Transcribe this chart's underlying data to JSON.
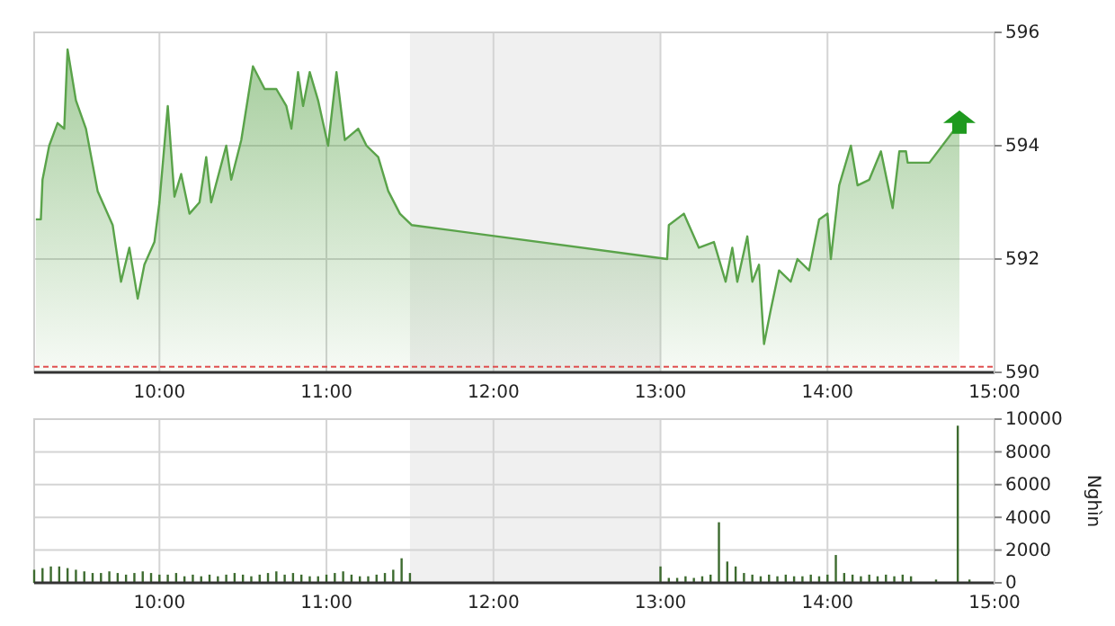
{
  "chart_data": [
    {
      "type": "area",
      "x": [
        9.26,
        9.29,
        9.3,
        9.34,
        9.39,
        9.43,
        9.45,
        9.5,
        9.56,
        9.63,
        9.72,
        9.77,
        9.82,
        9.87,
        9.91,
        9.97,
        10.0,
        10.05,
        10.09,
        10.13,
        10.18,
        10.24,
        10.28,
        10.31,
        10.4,
        10.43,
        10.49,
        10.56,
        10.63,
        10.7,
        10.76,
        10.79,
        10.83,
        10.86,
        10.9,
        10.95,
        11.01,
        11.06,
        11.11,
        11.19,
        11.24,
        11.31,
        11.37,
        11.44,
        11.51,
        13.04,
        13.05,
        13.14,
        13.23,
        13.32,
        13.39,
        13.43,
        13.46,
        13.52,
        13.55,
        13.59,
        13.62,
        13.66,
        13.71,
        13.78,
        13.82,
        13.89,
        13.95,
        14.0,
        14.02,
        14.07,
        14.14,
        14.18,
        14.25,
        14.32,
        14.39,
        14.43,
        14.47,
        14.48,
        14.61,
        14.79
      ],
      "values": [
        592.7,
        592.7,
        593.4,
        594.0,
        594.4,
        594.3,
        595.7,
        594.8,
        594.3,
        593.2,
        592.6,
        591.6,
        592.2,
        591.3,
        591.9,
        592.3,
        593.0,
        594.7,
        593.1,
        593.5,
        592.8,
        593.0,
        593.8,
        593.0,
        594.0,
        593.4,
        594.1,
        595.4,
        595.0,
        595.0,
        594.7,
        594.3,
        595.3,
        594.7,
        595.3,
        594.8,
        594.0,
        595.3,
        594.1,
        594.3,
        594.0,
        593.8,
        593.2,
        592.8,
        592.6,
        592.0,
        592.6,
        592.8,
        592.2,
        592.3,
        591.6,
        592.2,
        591.6,
        592.4,
        591.6,
        591.9,
        590.5,
        591.1,
        591.8,
        591.6,
        592.0,
        591.8,
        592.7,
        592.8,
        592.0,
        593.3,
        594.0,
        593.3,
        593.4,
        593.9,
        592.9,
        593.9,
        593.9,
        593.7,
        593.7,
        594.4
      ],
      "color": "#5aa34a",
      "xlim": [
        9.25,
        15
      ],
      "ylim": [
        590,
        596
      ],
      "xticks": [
        {
          "value": 10,
          "label": "10:00"
        },
        {
          "value": 11,
          "label": "11:00"
        },
        {
          "value": 12,
          "label": "12:00"
        },
        {
          "value": 13,
          "label": "13:00"
        },
        {
          "value": 14,
          "label": "14:00"
        },
        {
          "value": 15,
          "label": "15:00"
        }
      ],
      "yticks": [
        590,
        592,
        594,
        596
      ],
      "grid": true,
      "bands": [
        {
          "axis": "x",
          "from": 11.5,
          "to": 13,
          "color": "#f0f0f0"
        }
      ],
      "ref_lines": [
        {
          "axis": "y",
          "value": 590.1,
          "color": "#e05050",
          "line_style": "dashed"
        }
      ]
    },
    {
      "type": "bar",
      "x": [
        9.25,
        9.3,
        9.35,
        9.4,
        9.45,
        9.5,
        9.55,
        9.6,
        9.65,
        9.7,
        9.75,
        9.8,
        9.85,
        9.9,
        9.95,
        10.0,
        10.05,
        10.1,
        10.15,
        10.2,
        10.25,
        10.3,
        10.35,
        10.4,
        10.45,
        10.5,
        10.55,
        10.6,
        10.65,
        10.7,
        10.75,
        10.8,
        10.85,
        10.9,
        10.95,
        11.0,
        11.05,
        11.1,
        11.15,
        11.2,
        11.25,
        11.3,
        11.35,
        11.4,
        11.45,
        11.5,
        13.0,
        13.05,
        13.1,
        13.15,
        13.2,
        13.25,
        13.3,
        13.35,
        13.4,
        13.45,
        13.5,
        13.55,
        13.6,
        13.65,
        13.7,
        13.75,
        13.8,
        13.85,
        13.9,
        13.95,
        14.0,
        14.05,
        14.1,
        14.15,
        14.2,
        14.25,
        14.3,
        14.35,
        14.4,
        14.45,
        14.5,
        14.65,
        14.78,
        14.85
      ],
      "values": [
        800,
        900,
        1000,
        1000,
        900,
        800,
        700,
        600,
        600,
        700,
        600,
        500,
        600,
        700,
        600,
        500,
        500,
        600,
        400,
        500,
        400,
        500,
        400,
        500,
        600,
        500,
        400,
        500,
        600,
        700,
        500,
        600,
        500,
        400,
        400,
        500,
        600,
        700,
        500,
        400,
        400,
        500,
        600,
        800,
        1500,
        600,
        1000,
        300,
        300,
        400,
        300,
        400,
        500,
        3700,
        1300,
        1000,
        600,
        500,
        400,
        500,
        400,
        500,
        400,
        400,
        500,
        400,
        500,
        1700,
        600,
        500,
        400,
        500,
        400,
        500,
        400,
        500,
        400,
        200,
        9600,
        200
      ],
      "color": "#3d6b2f",
      "xlim": [
        9.25,
        15
      ],
      "ylim": [
        0,
        10000
      ],
      "xticks": [
        {
          "value": 10,
          "label": "10:00"
        },
        {
          "value": 11,
          "label": "11:00"
        },
        {
          "value": 12,
          "label": "12:00"
        },
        {
          "value": 13,
          "label": "13:00"
        },
        {
          "value": 14,
          "label": "14:00"
        },
        {
          "value": 15,
          "label": "15:00"
        }
      ],
      "yticks": [
        0,
        2000,
        4000,
        6000,
        8000,
        10000
      ],
      "grid": true,
      "ylabel": "Nghìn",
      "bands": [
        {
          "axis": "x",
          "from": 11.5,
          "to": 13,
          "color": "#f0f0f0"
        }
      ]
    }
  ]
}
